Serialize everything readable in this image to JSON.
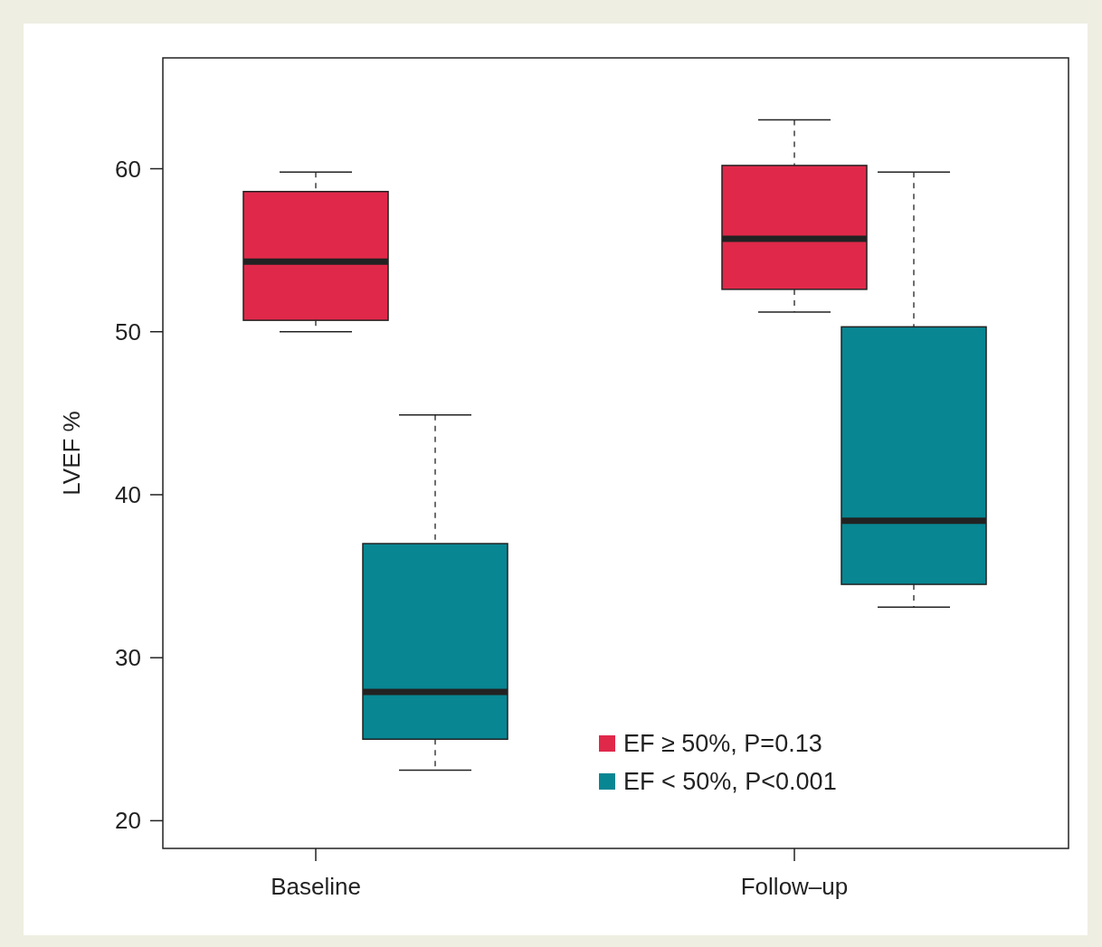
{
  "chart_data": {
    "type": "box",
    "ylabel": "LVEF %",
    "categories": [
      "Baseline",
      "Follow–up"
    ],
    "ylim": [
      18.3,
      66.8
    ],
    "yticks": [
      20,
      30,
      40,
      50,
      60
    ],
    "grid": false,
    "legend": "bottom right",
    "series": [
      {
        "name": "EF ≥ 50%, P=0.13",
        "color": "#e0294a",
        "boxes": [
          {
            "low": 50,
            "q1": 50.7,
            "median": 54.3,
            "q3": 58.6,
            "high": 59.8
          },
          {
            "low": 51.2,
            "q1": 52.6,
            "median": 55.7,
            "q3": 60.2,
            "high": 63
          }
        ]
      },
      {
        "name": "EF < 50%, P<0.001",
        "color": "#088692",
        "boxes": [
          {
            "low": 23.1,
            "q1": 25,
            "median": 27.9,
            "q3": 37,
            "high": 44.9
          },
          {
            "low": 33.1,
            "q1": 34.5,
            "median": 38.4,
            "q3": 50.3,
            "high": 59.8
          }
        ]
      }
    ]
  }
}
